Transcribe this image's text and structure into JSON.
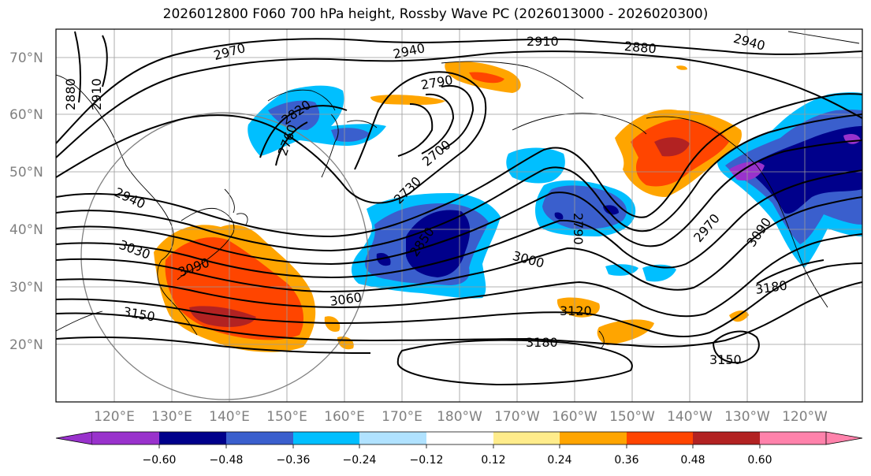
{
  "title": "2026012800 F060 700 hPa height, Rossby Wave PC (2026013000 - 2026020300)",
  "lat_labels": [
    "70°N",
    "60°N",
    "50°N",
    "40°N",
    "30°N",
    "20°N"
  ],
  "lon_labels": [
    "120°E",
    "130°E",
    "140°E",
    "150°E",
    "160°E",
    "170°E",
    "180°W",
    "170°W",
    "160°W",
    "150°W",
    "140°W",
    "130°W",
    "120°W"
  ],
  "colorbar": {
    "ticks": [
      "−0.60",
      "−0.48",
      "−0.36",
      "−0.24",
      "−0.12",
      "0.12",
      "0.24",
      "0.36",
      "0.48",
      "0.60"
    ],
    "colors": [
      "#9932cc",
      "#00008b",
      "#3a5fcd",
      "#00bfff",
      "#b0e2ff",
      "#ffffff",
      "#ffec8b",
      "#ffa500",
      "#ff4500",
      "#b22222",
      "#ff82ab"
    ]
  },
  "contour_labels": [
    "2970",
    "2940",
    "2910",
    "2880",
    "2940",
    "2880",
    "2910",
    "2820",
    "2790",
    "2760",
    "2700",
    "2730",
    "2940",
    "3030",
    "3090",
    "2850",
    "3000",
    "2790",
    "2970",
    "3090",
    "3060",
    "3120",
    "3180",
    "3150",
    "3180",
    "3150"
  ]
}
